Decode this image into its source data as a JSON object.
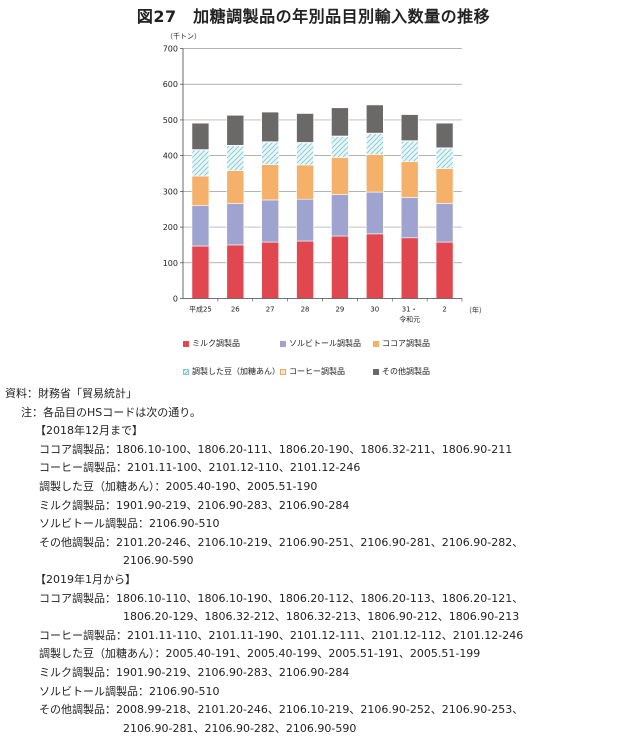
{
  "title": "図27　加糖調製品の年別品目別輸入数量の推移",
  "chart_data": {
    "type": "bar",
    "stacked": true,
    "unit_label": "（千トン）",
    "x_unit_label": "（年）",
    "categories": [
      "平成25",
      "26",
      "27",
      "28",
      "29",
      "30",
      "31・",
      "2"
    ],
    "category_sublabels": [
      "",
      "",
      "",
      "",
      "",
      "",
      "令和元",
      ""
    ],
    "yticks": [
      "0",
      "100",
      "200",
      "300",
      "400",
      "500",
      "600",
      "700"
    ],
    "ylim": [
      0,
      700
    ],
    "grid": true,
    "series": [
      {
        "name": "ミルク調製品",
        "color": "#e0474f",
        "values": [
          147,
          150,
          158,
          161,
          175,
          181,
          170,
          158
        ]
      },
      {
        "name": "ソルビトール調製品",
        "color": "#9ea3cf",
        "values": [
          113,
          116,
          118,
          117,
          116,
          117,
          113,
          108
        ]
      },
      {
        "name": "ココア調製品",
        "color": "#f5b06a",
        "values": [
          83,
          92,
          99,
          96,
          104,
          105,
          100,
          98
        ]
      },
      {
        "name": "調製した豆（加糖あん）",
        "color": "#bfe3e8",
        "pattern": "hatch",
        "values": [
          73,
          70,
          63,
          62,
          59,
          59,
          58,
          57
        ]
      },
      {
        "name": "コーヒー調製品",
        "color": "#fde3c2",
        "values": [
          1,
          1,
          1,
          1,
          1,
          1,
          1,
          1
        ]
      },
      {
        "name": "その他調製品",
        "color": "#6b6868",
        "values": [
          74,
          84,
          83,
          81,
          79,
          79,
          73,
          69
        ]
      }
    ],
    "legend": [
      [
        "ミルク調製品",
        "ソルビトール調製品",
        "ココア調製品"
      ],
      [
        "調製した豆（加糖あん）",
        "コーヒー調製品",
        "その他調製品"
      ]
    ]
  },
  "notes": {
    "source": "資料：財務省「貿易統計」",
    "note_intro": "注：各品目のHSコードは次の通り。",
    "lines": [
      "【2018年12月まで】",
      "ココア調製品：1806.10-100、1806.20-111、1806.20-190、1806.32-211、1806.90-211",
      "コーヒー調製品：2101.11-100、2101.12-110、2101.12-246",
      "調製した豆（加糖あん）：2005.40-190、2005.51-190",
      "ミルク調製品：1901.90-219、2106.90-283、2106.90-284",
      "ソルビトール調製品：2106.90-510",
      "その他調製品：2101.20-246、2106.10-219、2106.90-251、2106.90-281、2106.90-282、",
      "2106.90-590",
      "【2019年1月から】",
      "ココア調製品：1806.10-110、1806.10-190、1806.20-112、1806.20-113、1806.20-121、",
      "1806.20-129、1806.32-212、1806.32-213、1806.90-212、1806.90-213",
      "コーヒー調製品：2101.11-110、2101.11-190、2101.12-111、2101.12-112、2101.12-246",
      "調製した豆（加糖あん）：2005.40-191、2005.40-199、2005.51-191、2005.51-199",
      "ミルク調製品：1901.90-219、2106.90-283、2106.90-284",
      "ソルビトール調製品：2106.90-510",
      "その他調製品：2008.99-218、2101.20-246、2106.10-219、2106.90-252、2106.90-253、",
      "2106.90-281、2106.90-282、2106.90-590"
    ]
  }
}
